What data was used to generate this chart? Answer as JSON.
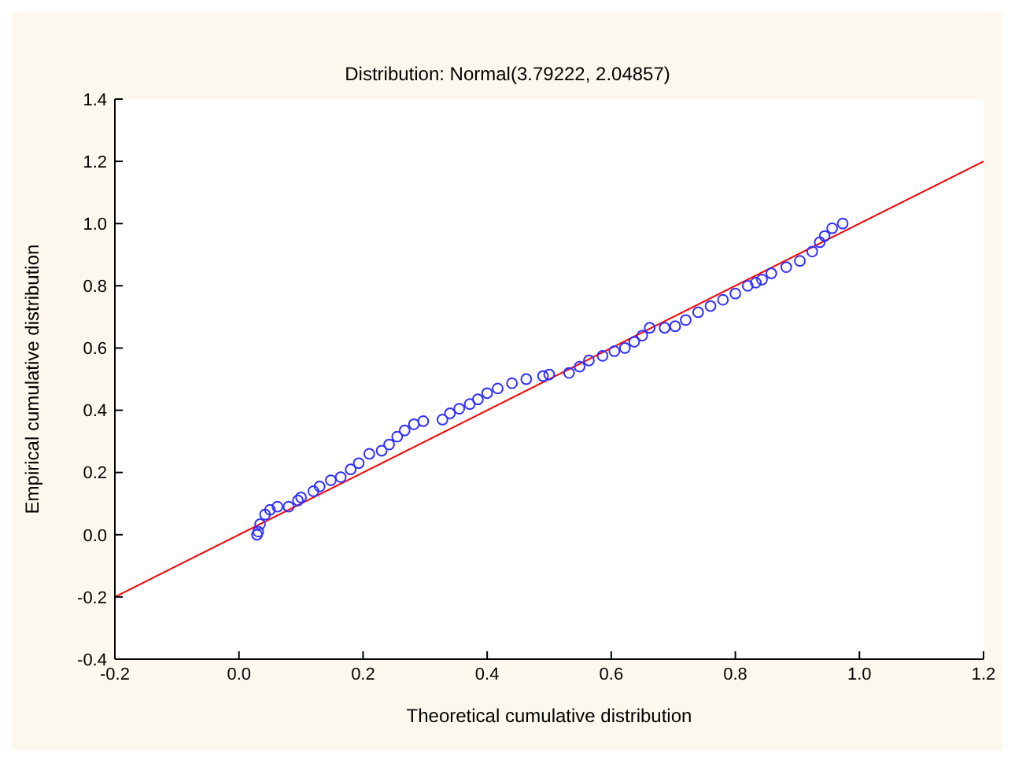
{
  "chart_data": {
    "type": "scatter",
    "title": "Distribution: Normal(3.79222, 2.04857)",
    "xlabel": "Theoretical cumulative distribution",
    "ylabel": "Empirical cumulative distribution",
    "xlim": [
      -0.2,
      1.2
    ],
    "ylim": [
      -0.4,
      1.4
    ],
    "xticks": [
      -0.2,
      {
        "value": 0,
        "label": "0.0"
      },
      0.2,
      0.4,
      0.6,
      0.8,
      {
        "value": 1,
        "label": "1.0"
      },
      1.2
    ],
    "yticks": [
      -0.4,
      -0.2,
      {
        "value": 0,
        "label": "0.0"
      },
      0.2,
      0.4,
      0.6,
      0.8,
      {
        "value": 1,
        "label": "1.0"
      },
      1.2,
      1.4
    ],
    "grid": false,
    "series": [
      {
        "marker": "circle",
        "color": "#3030ff",
        "x": [
          0.029,
          0.031,
          0.034,
          0.042,
          0.05,
          0.062,
          0.08,
          0.095,
          0.1,
          0.12,
          0.13,
          0.148,
          0.164,
          0.18,
          0.193,
          0.21,
          0.23,
          0.242,
          0.255,
          0.267,
          0.282,
          0.297,
          0.328,
          0.34,
          0.355,
          0.372,
          0.385,
          0.4,
          0.417,
          0.44,
          0.463,
          0.49,
          0.5,
          0.532,
          0.549,
          0.564,
          0.586,
          0.605,
          0.622,
          0.637,
          0.65,
          0.662,
          0.686,
          0.703,
          0.72,
          0.74,
          0.76,
          0.78,
          0.8,
          0.82,
          0.833,
          0.843,
          0.858,
          0.882,
          0.904,
          0.924,
          0.936,
          0.944,
          0.956,
          0.973
        ],
        "values": [
          0.0,
          0.01,
          0.034,
          0.065,
          0.08,
          0.09,
          0.09,
          0.11,
          0.12,
          0.14,
          0.155,
          0.175,
          0.185,
          0.21,
          0.23,
          0.26,
          0.27,
          0.29,
          0.315,
          0.335,
          0.355,
          0.365,
          0.37,
          0.39,
          0.405,
          0.42,
          0.435,
          0.455,
          0.47,
          0.487,
          0.5,
          0.51,
          0.515,
          0.52,
          0.54,
          0.56,
          0.575,
          0.59,
          0.6,
          0.62,
          0.64,
          0.665,
          0.665,
          0.67,
          0.69,
          0.715,
          0.735,
          0.755,
          0.775,
          0.8,
          0.81,
          0.82,
          0.84,
          0.86,
          0.88,
          0.91,
          0.94,
          0.96,
          0.985,
          1.0
        ]
      },
      {
        "type": "line",
        "marker": "none",
        "color": "#ff0000",
        "x": [
          -0.2,
          1.2
        ],
        "values": [
          -0.2,
          1.2
        ]
      }
    ]
  }
}
